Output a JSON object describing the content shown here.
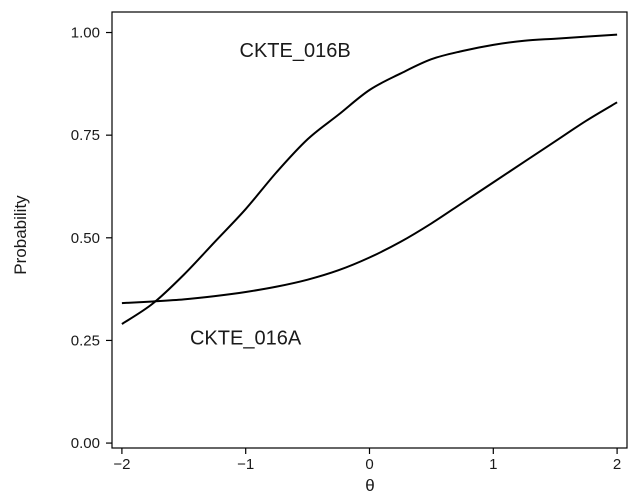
{
  "chart_data": {
    "type": "line",
    "title": "",
    "xlabel": "θ",
    "ylabel": "Probability",
    "xlim": [
      -2.08,
      2.08
    ],
    "ylim": [
      -0.012,
      1.05
    ],
    "x_ticks": [
      -2,
      -1,
      0,
      1,
      2
    ],
    "x_tick_labels": [
      "−2",
      "−1",
      "0",
      "1",
      "2"
    ],
    "y_ticks": [
      0.0,
      0.25,
      0.5,
      0.75,
      1.0
    ],
    "y_tick_labels": [
      "0.00",
      "0.25",
      "0.50",
      "0.75",
      "1.00"
    ],
    "grid": false,
    "series": [
      {
        "name": "",
        "x": [
          -2.0,
          -1.75,
          -1.5,
          -1.25,
          -1.0,
          -0.75,
          -0.5,
          -0.25,
          0.0,
          0.25,
          0.5,
          0.75,
          1.0,
          1.25,
          1.5,
          1.75,
          2.0
        ],
        "y": [
          0.29,
          0.34,
          0.41,
          0.49,
          0.57,
          0.66,
          0.74,
          0.8,
          0.86,
          0.9,
          0.935,
          0.955,
          0.97,
          0.98,
          0.985,
          0.99,
          0.995
        ]
      },
      {
        "name": "",
        "x": [
          -2.0,
          -1.75,
          -1.5,
          -1.25,
          -1.0,
          -0.75,
          -0.5,
          -0.25,
          0.0,
          0.25,
          0.5,
          0.75,
          1.0,
          1.25,
          1.5,
          1.75,
          2.0
        ],
        "y": [
          0.341,
          0.345,
          0.35,
          0.358,
          0.368,
          0.381,
          0.398,
          0.421,
          0.452,
          0.49,
          0.535,
          0.585,
          0.635,
          0.685,
          0.735,
          0.785,
          0.83
        ]
      }
    ],
    "annotations": [
      {
        "text": "CKTE_016B",
        "x": -1.05,
        "y": 0.94
      },
      {
        "text": "CKTE_016A",
        "x": -1.45,
        "y": 0.24
      }
    ]
  }
}
